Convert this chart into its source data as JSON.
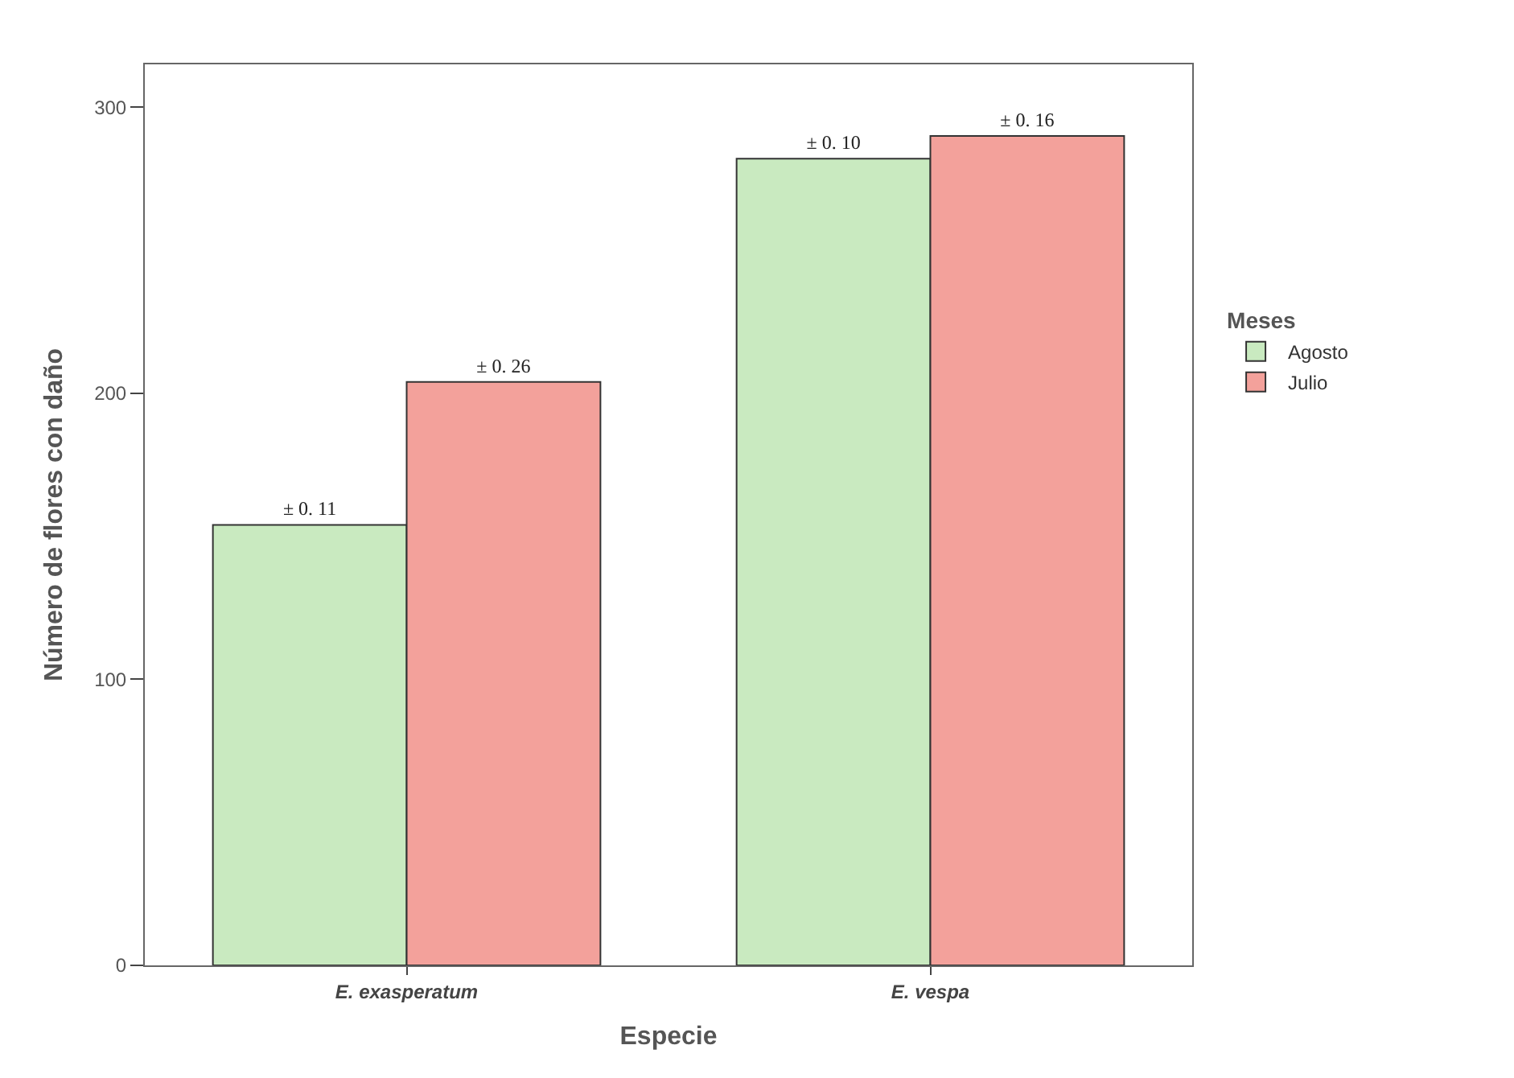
{
  "chart_data": {
    "type": "bar",
    "xlabel": "Especie",
    "ylabel": "Número de flores con daño",
    "legend_title": "Meses",
    "categories": [
      "E. exasperatum",
      "E. vespa"
    ],
    "series": [
      {
        "name": "Agosto",
        "color": "#c9eac0",
        "values": [
          154,
          282
        ],
        "value_labels": [
          "± 0. 11",
          "± 0. 10"
        ]
      },
      {
        "name": "Julio",
        "color": "#f3a19b",
        "values": [
          204,
          290
        ],
        "value_labels": [
          "± 0. 26",
          "± 0. 16"
        ]
      }
    ],
    "ylim": [
      0,
      315
    ],
    "yticks": [
      0,
      100,
      200,
      300
    ],
    "legend": "right"
  }
}
